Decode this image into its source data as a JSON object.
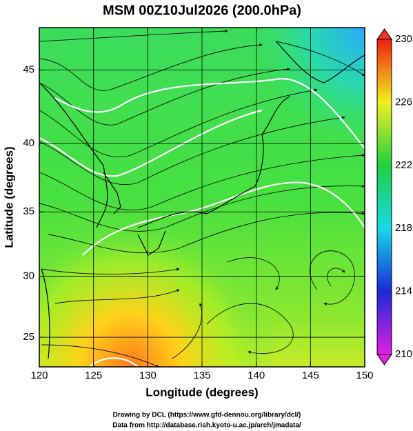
{
  "chart_data": {
    "type": "map",
    "projection": "mercator",
    "title": "MSM 00Z10Jul2026 (200.0hPa)",
    "x_label": "Longitude (degrees)",
    "y_label": "Latitude  (degrees)",
    "xlim": [
      120,
      150
    ],
    "ylim": [
      22.5,
      47.7
    ],
    "xticks": [
      120,
      125,
      130,
      135,
      140,
      145,
      150
    ],
    "yticks": [
      25,
      30,
      35,
      40,
      45
    ],
    "grid": true,
    "colorbar": {
      "lim": [
        210,
        230
      ],
      "ticks": [
        210,
        214,
        218,
        222,
        226,
        230
      ]
    },
    "credits": [
      "Drawing by DCL (https://www.gfd-dennou.org/library/dcl/)",
      "Data from http://database.rish.kyoto-u.ac.jp/arch/jmadata/"
    ]
  }
}
